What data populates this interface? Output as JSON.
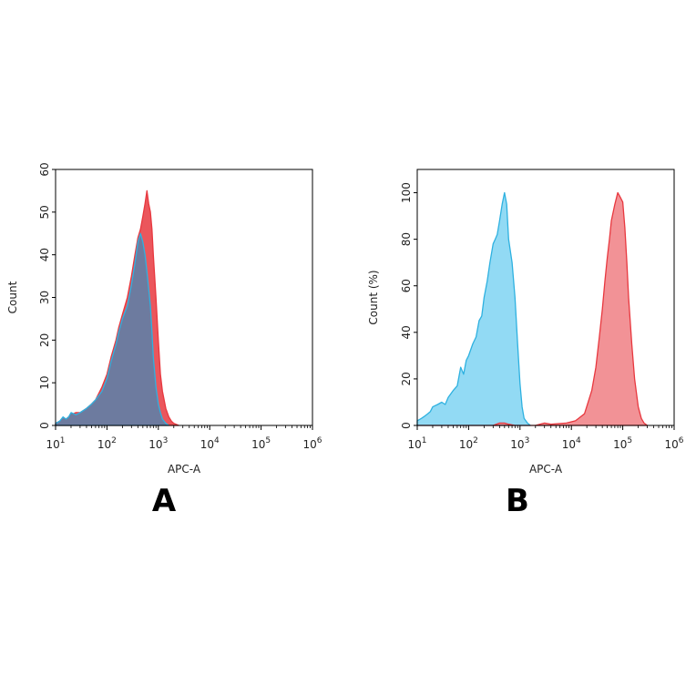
{
  "panels": [
    {
      "label": "A"
    },
    {
      "label": "B"
    }
  ],
  "chart_data": [
    {
      "type": "area",
      "xlabel": "APC-A",
      "ylabel": "Count",
      "xscale": "log",
      "xlim": [
        10,
        1000000
      ],
      "ylim": [
        0,
        60
      ],
      "x_ticks": [
        10,
        100,
        1000,
        10000,
        100000,
        1000000
      ],
      "x_tick_labels": [
        {
          "base": "10",
          "exp": "1"
        },
        {
          "base": "10",
          "exp": "2"
        },
        {
          "base": "10",
          "exp": "3"
        },
        {
          "base": "10",
          "exp": "4"
        },
        {
          "base": "10",
          "exp": "5"
        },
        {
          "base": "10",
          "exp": "6"
        }
      ],
      "y_ticks": [
        0,
        10,
        20,
        30,
        40,
        50,
        60
      ],
      "y_tick_labels": [
        "0",
        "10",
        "20",
        "30",
        "40",
        "50",
        "60"
      ],
      "grid": false,
      "series": [
        {
          "color": "#e8383f",
          "fill": "#e8383f",
          "points": [
            [
              10,
              0.5
            ],
            [
              12,
              1
            ],
            [
              14,
              1.5
            ],
            [
              16,
              1.5
            ],
            [
              18,
              2
            ],
            [
              20,
              2.5
            ],
            [
              25,
              3
            ],
            [
              30,
              3
            ],
            [
              40,
              4
            ],
            [
              50,
              5
            ],
            [
              60,
              6
            ],
            [
              80,
              9
            ],
            [
              100,
              12
            ],
            [
              120,
              16
            ],
            [
              150,
              20
            ],
            [
              170,
              23
            ],
            [
              200,
              26
            ],
            [
              250,
              30
            ],
            [
              300,
              35
            ],
            [
              350,
              40
            ],
            [
              400,
              44
            ],
            [
              450,
              46
            ],
            [
              500,
              49
            ],
            [
              550,
              52
            ],
            [
              600,
              55
            ],
            [
              650,
              52
            ],
            [
              700,
              50
            ],
            [
              750,
              46
            ],
            [
              800,
              40
            ],
            [
              900,
              30
            ],
            [
              1000,
              20
            ],
            [
              1100,
              12
            ],
            [
              1200,
              8
            ],
            [
              1400,
              4
            ],
            [
              1600,
              2
            ],
            [
              1800,
              1
            ],
            [
              2000,
              0.5
            ],
            [
              2500,
              0
            ]
          ]
        },
        {
          "color": "#2eb1e0",
          "fill": "#5f7fa6",
          "points": [
            [
              10,
              0.5
            ],
            [
              12,
              1
            ],
            [
              14,
              2
            ],
            [
              16,
              1.5
            ],
            [
              18,
              2
            ],
            [
              20,
              3
            ],
            [
              25,
              2.5
            ],
            [
              30,
              3
            ],
            [
              40,
              4
            ],
            [
              50,
              5
            ],
            [
              60,
              6
            ],
            [
              80,
              8
            ],
            [
              100,
              11
            ],
            [
              120,
              15
            ],
            [
              150,
              19
            ],
            [
              170,
              22
            ],
            [
              200,
              25
            ],
            [
              250,
              28
            ],
            [
              300,
              33
            ],
            [
              350,
              38
            ],
            [
              400,
              43
            ],
            [
              450,
              45
            ],
            [
              500,
              43
            ],
            [
              550,
              40
            ],
            [
              600,
              36
            ],
            [
              650,
              32
            ],
            [
              700,
              28
            ],
            [
              750,
              22
            ],
            [
              800,
              16
            ],
            [
              900,
              9
            ],
            [
              1000,
              5
            ],
            [
              1100,
              3
            ],
            [
              1200,
              1.5
            ],
            [
              1400,
              0.5
            ],
            [
              1600,
              0
            ]
          ]
        }
      ]
    },
    {
      "type": "area",
      "xlabel": "APC-A",
      "ylabel": "Count (%)",
      "xscale": "log",
      "xlim": [
        10,
        1000000
      ],
      "ylim": [
        0,
        110
      ],
      "x_ticks": [
        10,
        100,
        1000,
        10000,
        100000,
        1000000
      ],
      "x_tick_labels": [
        {
          "base": "10",
          "exp": "1"
        },
        {
          "base": "10",
          "exp": "2"
        },
        {
          "base": "10",
          "exp": "3"
        },
        {
          "base": "10",
          "exp": "4"
        },
        {
          "base": "10",
          "exp": "5"
        },
        {
          "base": "10",
          "exp": "6"
        }
      ],
      "y_ticks": [
        0,
        20,
        40,
        60,
        80,
        100
      ],
      "y_tick_labels": [
        "0",
        "20",
        "40",
        "60",
        "80",
        "100"
      ],
      "grid": false,
      "series": [
        {
          "color": "#2eb1e0",
          "fill": "#7fd3f2",
          "points": [
            [
              10,
              2
            ],
            [
              12,
              3
            ],
            [
              14,
              4
            ],
            [
              16,
              5
            ],
            [
              18,
              6
            ],
            [
              20,
              8
            ],
            [
              25,
              9
            ],
            [
              30,
              10
            ],
            [
              35,
              9
            ],
            [
              40,
              12
            ],
            [
              50,
              15
            ],
            [
              60,
              17
            ],
            [
              70,
              25
            ],
            [
              80,
              22
            ],
            [
              90,
              28
            ],
            [
              100,
              30
            ],
            [
              120,
              35
            ],
            [
              140,
              38
            ],
            [
              160,
              45
            ],
            [
              180,
              47
            ],
            [
              200,
              55
            ],
            [
              230,
              62
            ],
            [
              260,
              70
            ],
            [
              300,
              78
            ],
            [
              330,
              80
            ],
            [
              360,
              82
            ],
            [
              400,
              88
            ],
            [
              450,
              95
            ],
            [
              500,
              100
            ],
            [
              550,
              95
            ],
            [
              600,
              80
            ],
            [
              700,
              70
            ],
            [
              800,
              55
            ],
            [
              900,
              35
            ],
            [
              1000,
              18
            ],
            [
              1100,
              8
            ],
            [
              1200,
              3
            ],
            [
              1400,
              1
            ],
            [
              1600,
              0
            ]
          ]
        },
        {
          "color": "#e8383f",
          "fill": "#f07f84",
          "points": [
            [
              10,
              0
            ],
            [
              300,
              0
            ],
            [
              400,
              1
            ],
            [
              500,
              1
            ],
            [
              600,
              0.5
            ],
            [
              800,
              0
            ],
            [
              2000,
              0
            ],
            [
              3000,
              1
            ],
            [
              4000,
              0.5
            ],
            [
              8000,
              1
            ],
            [
              12000,
              2
            ],
            [
              18000,
              5
            ],
            [
              25000,
              15
            ],
            [
              30000,
              25
            ],
            [
              35000,
              38
            ],
            [
              40000,
              50
            ],
            [
              45000,
              62
            ],
            [
              50000,
              72
            ],
            [
              55000,
              80
            ],
            [
              60000,
              88
            ],
            [
              70000,
              95
            ],
            [
              80000,
              100
            ],
            [
              90000,
              98
            ],
            [
              100000,
              96
            ],
            [
              110000,
              85
            ],
            [
              120000,
              70
            ],
            [
              130000,
              55
            ],
            [
              150000,
              35
            ],
            [
              170000,
              20
            ],
            [
              200000,
              8
            ],
            [
              230000,
              3
            ],
            [
              260000,
              1
            ],
            [
              300000,
              0
            ]
          ]
        }
      ]
    }
  ]
}
